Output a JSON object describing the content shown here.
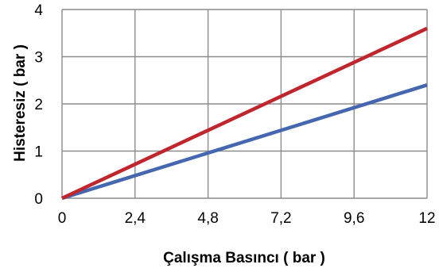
{
  "chart_data": {
    "type": "line",
    "xlabel": "Çalışma Basıncı ( bar )",
    "ylabel": "Histeresiz ( bar )",
    "xlim": [
      0,
      12
    ],
    "ylim": [
      0,
      4
    ],
    "x_ticks": [
      0,
      2.4,
      4.8,
      7.2,
      9.6,
      12
    ],
    "x_tick_labels": [
      "0",
      "2,4",
      "4,8",
      "7,2",
      "9,6",
      "12"
    ],
    "y_ticks": [
      0,
      1,
      2,
      3,
      4
    ],
    "y_tick_labels": [
      "0",
      "1",
      "2",
      "3",
      "4"
    ],
    "grid": true,
    "legend": "none",
    "series": [
      {
        "color": "#4567b0",
        "x": [
          0,
          12
        ],
        "y": [
          0,
          2.4
        ]
      },
      {
        "color": "#c0262d",
        "x": [
          0,
          12
        ],
        "y": [
          0,
          3.6
        ]
      }
    ]
  }
}
